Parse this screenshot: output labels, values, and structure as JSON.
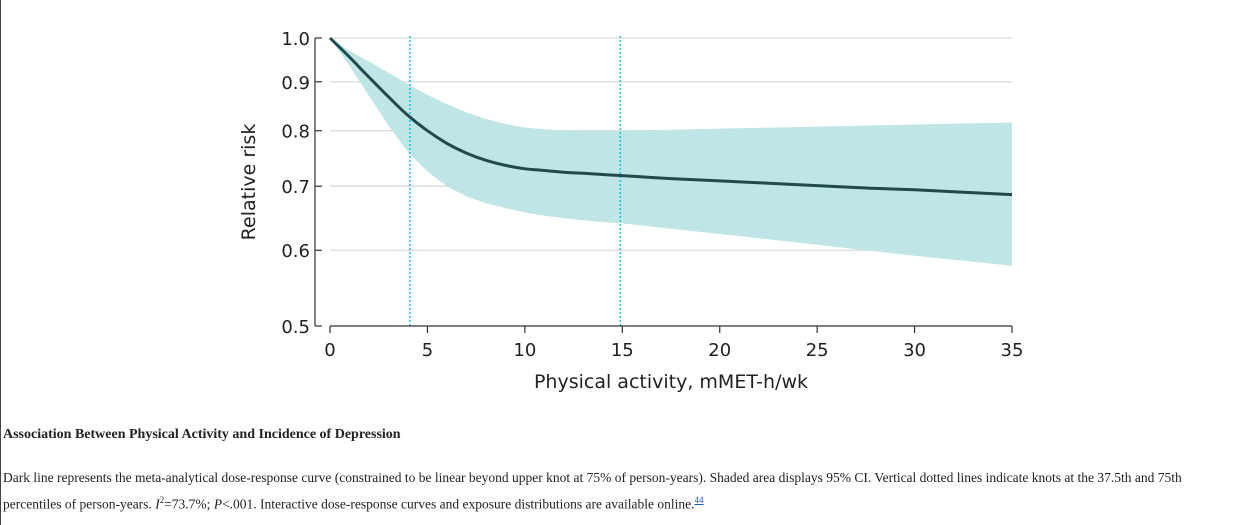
{
  "chart_data": {
    "type": "line",
    "title": "",
    "xlabel": "Physical activity, mMET-h/wk",
    "ylabel": "Relative risk",
    "xlim": [
      0,
      35
    ],
    "ylim": [
      0.5,
      1.0
    ],
    "y_scale": "log",
    "x_ticks": [
      0,
      5,
      10,
      15,
      20,
      25,
      30,
      35
    ],
    "y_ticks": [
      0.5,
      0.6,
      0.7,
      0.8,
      0.9,
      1.0
    ],
    "y_tick_labels": [
      "0.5",
      "0.6",
      "0.7",
      "0.8",
      "0.9",
      "1.0"
    ],
    "grid": "horizontal",
    "knots": [
      4.1,
      14.9
    ],
    "series": [
      {
        "x": [
          0,
          1,
          2,
          3,
          4,
          5,
          6,
          7,
          8,
          9,
          10,
          11,
          12,
          13,
          14,
          15,
          17.5,
          20,
          22.5,
          25,
          27.5,
          30,
          32.5,
          35
        ],
        "y": [
          1.0,
          0.955,
          0.91,
          0.868,
          0.83,
          0.8,
          0.776,
          0.758,
          0.745,
          0.736,
          0.73,
          0.727,
          0.724,
          0.722,
          0.72,
          0.718,
          0.713,
          0.709,
          0.705,
          0.701,
          0.697,
          0.694,
          0.69,
          0.686
        ],
        "ci_lower": [
          1.0,
          0.935,
          0.87,
          0.81,
          0.76,
          0.725,
          0.7,
          0.683,
          0.672,
          0.664,
          0.657,
          0.652,
          0.648,
          0.645,
          0.642,
          0.64,
          0.632,
          0.624,
          0.616,
          0.608,
          0.6,
          0.592,
          0.585,
          0.578
        ],
        "ci_upper": [
          1.0,
          0.97,
          0.945,
          0.92,
          0.895,
          0.872,
          0.853,
          0.836,
          0.823,
          0.813,
          0.806,
          0.803,
          0.801,
          0.8,
          0.8,
          0.8,
          0.802,
          0.804,
          0.806,
          0.808,
          0.81,
          0.812,
          0.814,
          0.816
        ]
      }
    ],
    "colors": {
      "line": "#1f4a4f",
      "band": "#bfe5e6",
      "knot_line": "#26c6d4",
      "grid": "#d9d9d9",
      "axis": "#333333"
    }
  },
  "caption": {
    "title": "Association Between Physical Activity and Incidence of Depression",
    "body_part1": "Dark line represents the meta-analytical dose-response curve (constrained to be linear beyond upper knot at 75% of person-years). Shaded area displays 95% CI. Vertical dotted lines indicate knots at the 37.5th and 75th percentiles of person-years. ",
    "i2_symbol": "I",
    "i2_sup": "2",
    "i2_value": "=73.7%; ",
    "p_symbol": "P",
    "p_value": "<.001. Interactive dose-response curves and exposure distributions are available online.",
    "ref_number": "44"
  }
}
